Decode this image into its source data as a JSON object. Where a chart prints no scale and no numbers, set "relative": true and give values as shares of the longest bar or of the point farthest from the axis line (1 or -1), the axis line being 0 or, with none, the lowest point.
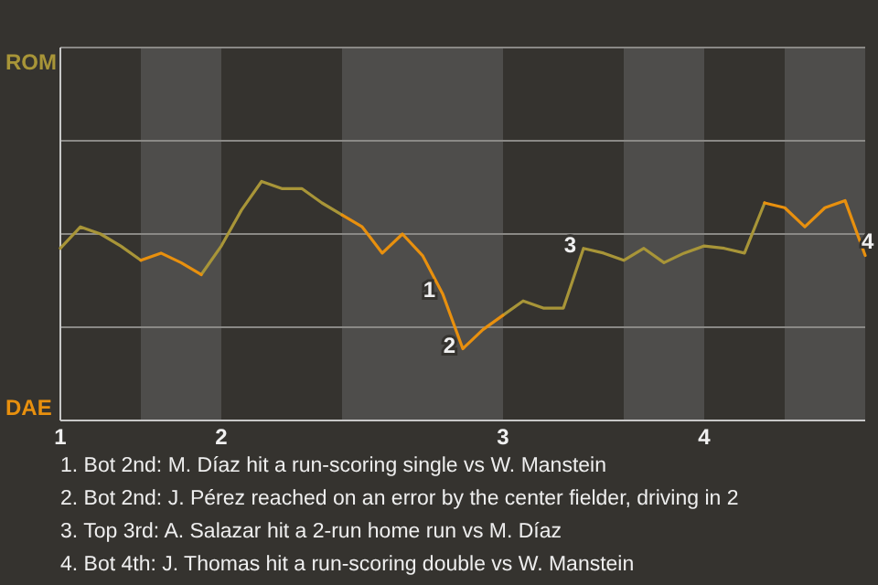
{
  "chart_data": {
    "type": "line",
    "relative": true,
    "categories": [
      "1",
      null,
      null,
      null,
      null,
      null,
      null,
      null,
      "2",
      null,
      null,
      null,
      null,
      null,
      null,
      null,
      null,
      null,
      null,
      null,
      null,
      null,
      "3",
      null,
      null,
      null,
      null,
      null,
      null,
      null,
      null,
      null,
      "4",
      null,
      null,
      null,
      null,
      null,
      null,
      null,
      null
    ],
    "series": [
      {
        "color": "#a89538",
        "values": [
          0.72,
          0.81,
          0.78,
          0.73,
          0.67,
          null,
          null,
          0.61,
          0.73,
          0.88,
          1,
          0.97,
          0.97,
          0.91,
          0.86,
          null,
          null,
          null,
          null,
          null,
          null,
          null,
          0.44,
          0.5,
          0.47,
          0.47,
          0.72,
          0.7,
          0.67,
          0.72,
          0.66,
          0.7,
          0.73,
          0.72,
          0.7,
          0.91,
          null,
          null,
          null,
          null,
          null
        ]
      },
      {
        "color": "#e8900e",
        "values": [
          null,
          null,
          null,
          null,
          0.67,
          0.7,
          0.66,
          0.61,
          null,
          null,
          null,
          null,
          null,
          null,
          0.86,
          0.81,
          0.7,
          0.78,
          0.69,
          0.53,
          0.3,
          0.38,
          0.44,
          null,
          null,
          null,
          null,
          null,
          null,
          null,
          null,
          null,
          null,
          null,
          null,
          0.91,
          0.89,
          0.81,
          0.89,
          0.92,
          0.69
        ]
      }
    ],
    "ylim": [
      0,
      1.56
    ],
    "ref_lines": [
      {
        "axis": "y",
        "value": 0.39,
        "color": "#8a8986"
      },
      {
        "axis": "y",
        "value": 0.78,
        "color": "#8a8986"
      },
      {
        "axis": "y",
        "value": 1.17,
        "color": "#8a8986"
      }
    ],
    "marker": "none",
    "line_style": "solid",
    "annotations": [
      "ROM",
      "DAE",
      "1",
      "2",
      "3",
      "4",
      "1. Bot 2nd: M. Díaz hit a run-scoring single vs W. Manstein",
      "2. Bot 2nd: J. Pérez reached on an error by the center fielder, driving in 2",
      "3. Top 3rd: A. Salazar hit a 2-run home run vs M. Díaz",
      "4. Bot 4th: J. Thomas hit a run-scoring double vs W. Manstein"
    ]
  }
}
